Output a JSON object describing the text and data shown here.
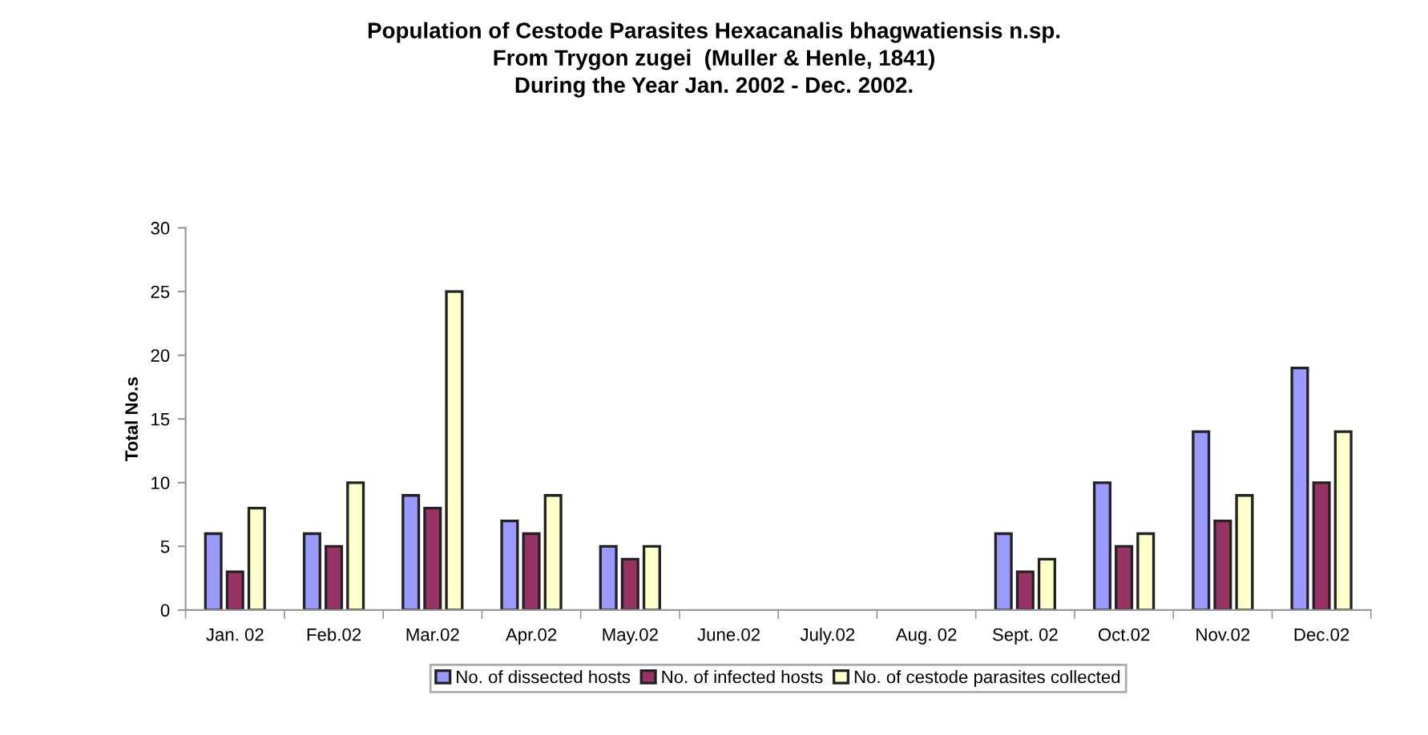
{
  "chart_data": {
    "type": "bar",
    "title": "Population of Cestode Parasites Hexacanalis bhagwatiensis n.sp.\nFrom Trygon zugei  (Muller & Henle, 1841)\nDuring the Year Jan. 2002 - Dec. 2002.",
    "ylabel": "Total No.s",
    "categories": [
      "Jan. 02",
      "Feb.02",
      "Mar.02",
      "Apr.02",
      "May.02",
      "June.02",
      "July.02",
      "Aug. 02",
      "Sept. 02",
      "Oct.02",
      "Nov.02",
      "Dec.02"
    ],
    "series": [
      {
        "name": "No. of dissected hosts",
        "color": "#9999ff",
        "values": [
          6,
          6,
          9,
          7,
          5,
          null,
          null,
          null,
          6,
          10,
          14,
          19
        ]
      },
      {
        "name": "No. of infected hosts",
        "color": "#993366",
        "values": [
          3,
          5,
          8,
          6,
          4,
          null,
          null,
          null,
          3,
          5,
          7,
          10
        ]
      },
      {
        "name": "No. of cestode parasites collected",
        "color": "#ffffcc",
        "values": [
          8,
          10,
          25,
          9,
          5,
          null,
          null,
          null,
          4,
          6,
          9,
          14
        ]
      }
    ],
    "ylim": [
      0,
      30
    ],
    "yticks": [
      0,
      5,
      10,
      15,
      20,
      25,
      30
    ],
    "legend": "bottom",
    "grid": false
  }
}
